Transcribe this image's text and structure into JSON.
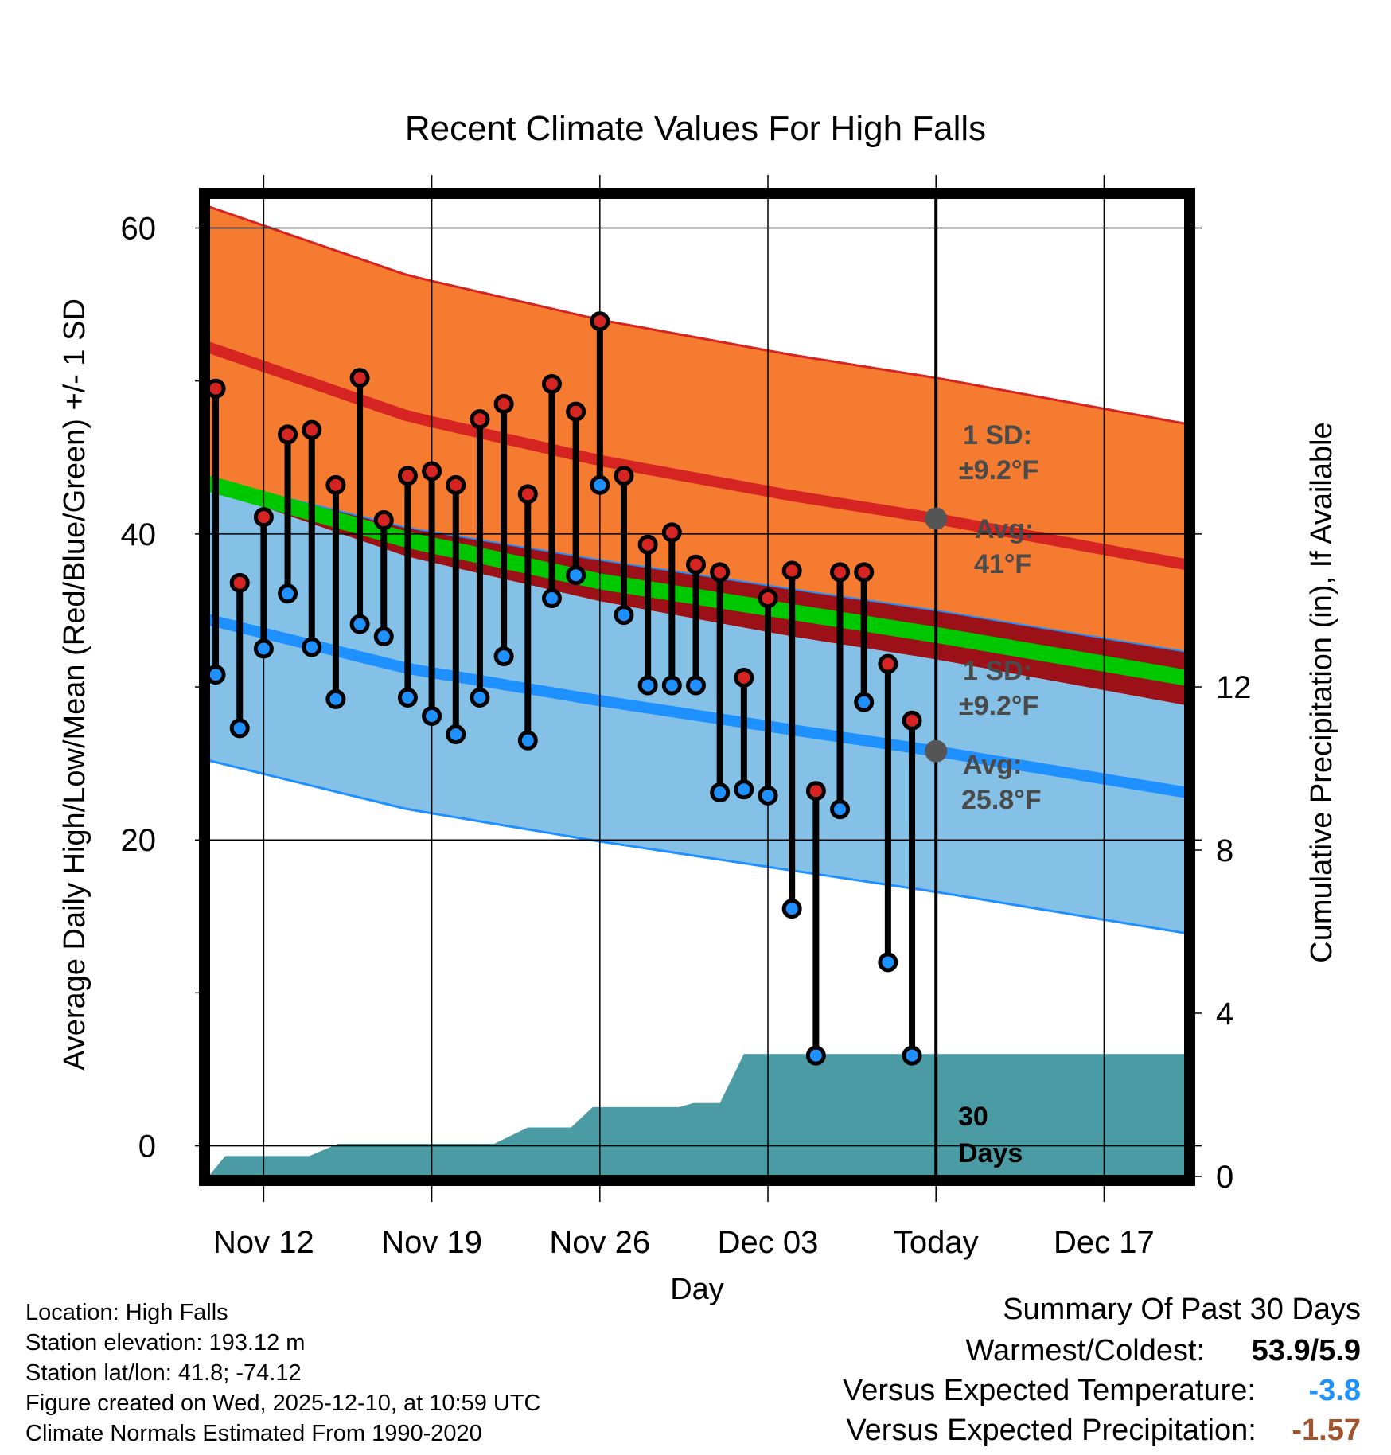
{
  "chart_data": {
    "type": "range_dot",
    "title": "Recent Climate Values For High Falls",
    "xlabel": "Day",
    "ylabel": "Average Daily High/Low/Mean (Red/Blue/Green) +/- 1 SD",
    "y2label": "Cumulative Precipitation (in), If Available",
    "ylim": [
      -2,
      62
    ],
    "y2lim": [
      0,
      24
    ],
    "yticks": [
      0,
      20,
      40,
      60
    ],
    "y2ticks": [
      0,
      4,
      8,
      12
    ],
    "xlim": [
      -2.3,
      38.4
    ],
    "xticks": [
      {
        "day": 0,
        "label": "Nov 12"
      },
      {
        "day": 7,
        "label": "Nov 19"
      },
      {
        "day": 14,
        "label": "Nov 26"
      },
      {
        "day": 21,
        "label": "Dec 03"
      },
      {
        "day": 28,
        "label": "Today"
      },
      {
        "day": 35,
        "label": "Dec 17"
      }
    ],
    "days": [
      -2,
      -1,
      0,
      1,
      2,
      3,
      4,
      5,
      6,
      7,
      8,
      9,
      10,
      11,
      12,
      13,
      14,
      15,
      16,
      17,
      18,
      19,
      20,
      21,
      22,
      23,
      24,
      25,
      26,
      27
    ],
    "highs": [
      49.5,
      36.8,
      41.1,
      46.5,
      46.8,
      43.2,
      50.2,
      40.9,
      43.8,
      44.1,
      43.2,
      47.5,
      48.5,
      42.6,
      49.8,
      48.0,
      53.9,
      43.8,
      39.3,
      40.1,
      38.0,
      37.5,
      30.6,
      35.8,
      37.6,
      23.2,
      37.5,
      37.5,
      31.5,
      27.8
    ],
    "lows": [
      30.8,
      27.3,
      32.5,
      36.1,
      32.6,
      29.2,
      34.1,
      33.3,
      29.3,
      28.1,
      26.9,
      29.3,
      32.0,
      26.5,
      35.8,
      37.3,
      43.2,
      34.7,
      30.1,
      30.1,
      30.1,
      23.1,
      23.3,
      22.9,
      15.5,
      5.9,
      22.0,
      29.0,
      12.0,
      5.9
    ],
    "normals": {
      "days": [
        -2.3,
        6,
        14,
        22,
        28,
        38.4
      ],
      "high_avg": [
        52.2,
        47.7,
        44.8,
        42.5,
        41.0,
        38.0
      ],
      "high_sd": 9.2,
      "low_avg": [
        34.4,
        31.2,
        29.1,
        27.2,
        25.8,
        23.1
      ],
      "low_sd": 9.2,
      "mean_avg": [
        43.3,
        39.6,
        36.9,
        34.9,
        33.4,
        30.6
      ]
    },
    "precip_cumulative": [
      {
        "day": -2.3,
        "value": 0
      },
      {
        "day": -1.6,
        "value": 0.5
      },
      {
        "day": 1.9,
        "value": 0.5
      },
      {
        "day": 3.1,
        "value": 0.8
      },
      {
        "day": 9.6,
        "value": 0.8
      },
      {
        "day": 11.0,
        "value": 1.2
      },
      {
        "day": 12.8,
        "value": 1.2
      },
      {
        "day": 13.7,
        "value": 1.7
      },
      {
        "day": 17.3,
        "value": 1.7
      },
      {
        "day": 17.9,
        "value": 1.8
      },
      {
        "day": 19.0,
        "value": 1.8
      },
      {
        "day": 20.0,
        "value": 3.0
      },
      {
        "day": 38.4,
        "value": 3.0
      }
    ],
    "today_day": 28,
    "annotations": {
      "high_sd_line1": "1 SD:",
      "high_sd_line2": "±9.2°F",
      "high_avg_line1": "Avg:",
      "high_avg_line2": "41°F",
      "low_sd_line1": "1 SD:",
      "low_sd_line2": "±9.2°F",
      "low_avg_line1": "Avg:",
      "low_avg_line2": "25.8°F",
      "window_line1": "30",
      "window_line2": "Days"
    },
    "colors": {
      "high_band": "#f47b2f",
      "high_line": "#d62423",
      "low_band": "#85c1e6",
      "low_line": "#1e90ff",
      "mean_line": "#00c800",
      "overlap": "#9b1117",
      "precip": "#4a9ba3",
      "high_marker": "#d62423",
      "low_marker": "#1e90ff",
      "avg_marker": "#555555"
    }
  },
  "footer": {
    "location": "Location: High Falls",
    "elevation": "Station elevation: 193.12 m",
    "latlon": "Station lat/lon: 41.8; -74.12",
    "created": "Figure created on Wed, 2025-12-10, at 10:59 UTC",
    "normals": "Climate Normals Estimated From 1990-2020"
  },
  "summary": {
    "heading": "Summary Of Past 30 Days",
    "warmest_label": "Warmest/Coldest:",
    "warmest_value": "53.9/5.9",
    "temp_label": "Versus Expected Temperature:",
    "temp_value": "-3.8",
    "temp_color": "#1e90ff",
    "precip_label": "Versus Expected Precipitation:",
    "precip_value": "-1.57",
    "precip_color": "#a0522d"
  }
}
